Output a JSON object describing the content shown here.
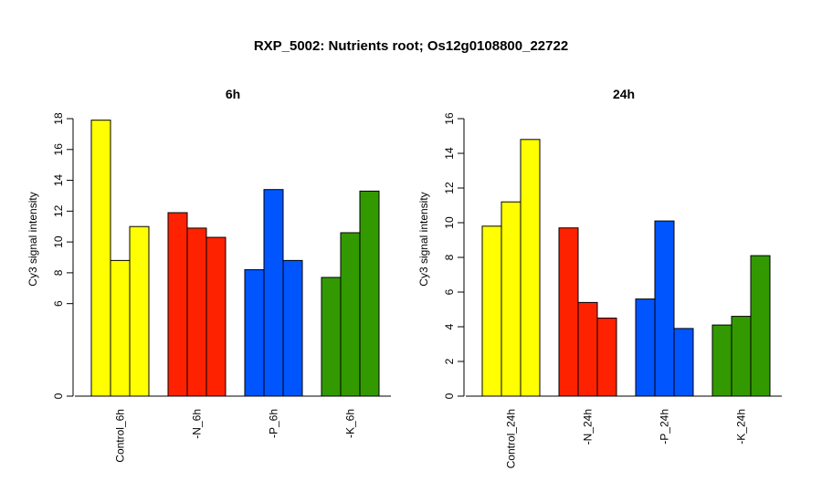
{
  "title": "RXP_5002: Nutrients root; Os12g0108800_22722",
  "colors": {
    "Control": "#ffff00",
    "N": "#ff2200",
    "P": "#0055ff",
    "K": "#339900"
  },
  "chart_data": [
    {
      "type": "bar",
      "title": "6h",
      "ylabel": "Cy3 signal intensity",
      "xlabel": "",
      "ylim": [
        0,
        18
      ],
      "yticks": [
        0,
        6,
        8,
        10,
        12,
        14,
        16,
        18
      ],
      "tick_labels": [
        "0",
        "6",
        "8",
        "10",
        "12",
        "14",
        "16",
        "18"
      ],
      "grid": false,
      "categories": [
        "Control_6h",
        "-N_6h",
        "-P_6h",
        "-K_6h"
      ],
      "category_colors": [
        "Control",
        "N",
        "P",
        "K"
      ],
      "values": [
        [
          17.9,
          8.8,
          11.0
        ],
        [
          11.9,
          10.9,
          10.3
        ],
        [
          8.2,
          13.4,
          8.8
        ],
        [
          7.7,
          10.6,
          13.3
        ]
      ]
    },
    {
      "type": "bar",
      "title": "24h",
      "ylabel": "Cy3 signal intensity",
      "xlabel": "",
      "ylim": [
        0,
        16
      ],
      "yticks": [
        0,
        2,
        4,
        6,
        8,
        10,
        12,
        14,
        16
      ],
      "tick_labels": [
        "0",
        "2",
        "4",
        "6",
        "8",
        "10",
        "12",
        "14",
        "16"
      ],
      "grid": false,
      "categories": [
        "Control_24h",
        "-N_24h",
        "-P_24h",
        "-K_24h"
      ],
      "category_colors": [
        "Control",
        "N",
        "P",
        "K"
      ],
      "values": [
        [
          9.8,
          11.2,
          14.8
        ],
        [
          9.7,
          5.4,
          4.5
        ],
        [
          5.6,
          10.1,
          3.9
        ],
        [
          4.1,
          4.6,
          8.1
        ]
      ]
    }
  ]
}
